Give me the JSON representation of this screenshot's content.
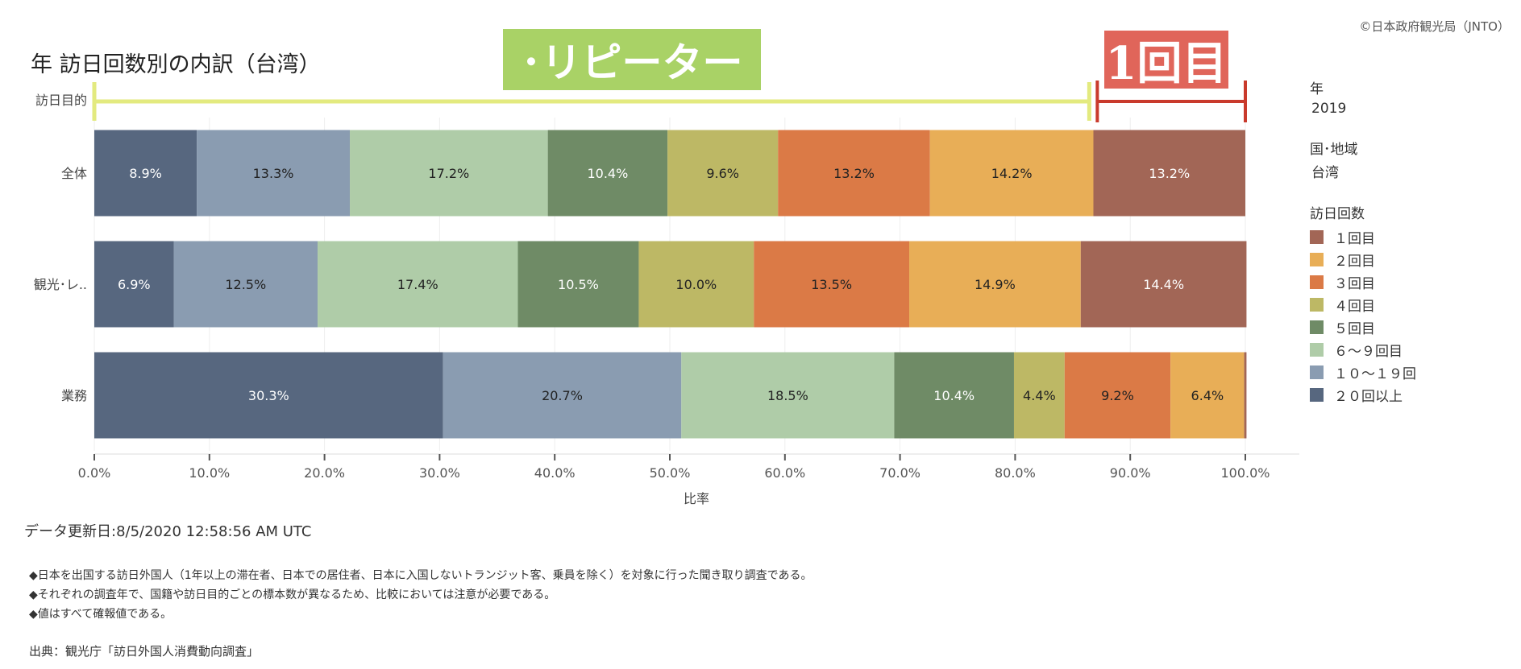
{
  "copyright": "©日本政府観光局（JNTO）",
  "title": "年 訪日回数別の内訳（台湾）",
  "banners": {
    "repeater": "･リピーター",
    "first": "1回目"
  },
  "chart_data": {
    "type": "bar",
    "orientation": "horizontal-stacked-100",
    "row_header": "訪日目的",
    "categories": [
      "全体",
      "観光･レ..",
      "業務"
    ],
    "series": [
      {
        "name": "２０回以上",
        "color": "#57677f",
        "values": [
          8.9,
          6.9,
          30.3
        ]
      },
      {
        "name": "１０～１９回",
        "color": "#8a9cb1",
        "values": [
          13.3,
          12.5,
          20.7
        ]
      },
      {
        "name": "６～９回目",
        "color": "#afcca8",
        "values": [
          17.2,
          17.4,
          18.5
        ]
      },
      {
        "name": "５回目",
        "color": "#6f8b66",
        "values": [
          10.4,
          10.5,
          10.4
        ]
      },
      {
        "name": "４回目",
        "color": "#bdb865",
        "values": [
          9.6,
          10.0,
          4.4
        ]
      },
      {
        "name": "３回目",
        "color": "#db7a46",
        "values": [
          13.2,
          13.5,
          9.2
        ]
      },
      {
        "name": "２回目",
        "color": "#e8ae57",
        "values": [
          14.2,
          14.9,
          6.4
        ]
      },
      {
        "name": "１回目",
        "color": "#a26656",
        "values": [
          13.2,
          14.4,
          0.2
        ]
      }
    ],
    "label_text_colors": [
      "#ffffff",
      "#222222",
      "#222222",
      "#ffffff",
      "#222222",
      "#222222",
      "#222222",
      "#ffffff"
    ],
    "data_labels": [
      [
        "8.9%",
        "13.3%",
        "17.2%",
        "10.4%",
        "9.6%",
        "13.2%",
        "14.2%",
        "13.2%"
      ],
      [
        "6.9%",
        "12.5%",
        "17.4%",
        "10.5%",
        "10.0%",
        "13.5%",
        "14.9%",
        "14.4%"
      ],
      [
        "30.3%",
        "20.7%",
        "18.5%",
        "10.4%",
        "4.4%",
        "9.2%",
        "6.4%",
        ""
      ]
    ],
    "x_ticks": [
      "0.0%",
      "10.0%",
      "20.0%",
      "30.0%",
      "40.0%",
      "50.0%",
      "60.0%",
      "70.0%",
      "80.0%",
      "90.0%",
      "100.0%"
    ],
    "xlabel": "比率",
    "xlim": [
      0,
      100
    ],
    "bracket_split": 87.0
  },
  "filters": {
    "year_label": "年",
    "year_value": "2019",
    "country_label": "国･地域",
    "country_value": "台湾",
    "legend_title": "訪日回数",
    "legend_items": [
      {
        "label": "１回目",
        "color": "#a26656"
      },
      {
        "label": "２回目",
        "color": "#e8ae57"
      },
      {
        "label": "３回目",
        "color": "#db7a46"
      },
      {
        "label": "４回目",
        "color": "#bdb865"
      },
      {
        "label": "５回目",
        "color": "#6f8b66"
      },
      {
        "label": "６～９回目",
        "color": "#afcca8"
      },
      {
        "label": "１０～１９回",
        "color": "#8a9cb1"
      },
      {
        "label": "２０回以上",
        "color": "#57677f"
      }
    ]
  },
  "updated": "データ更新日:8/5/2020 12:58:56 AM UTC",
  "notes": [
    "◆日本を出国する訪日外国人（1年以上の滞在者、日本での居住者、日本に入国しないトランジット客、乗員を除く）を対象に行った聞き取り調査である。",
    "◆それぞれの調査年で、国籍や訪日目的ごとの標本数が異なるため、比較においては注意が必要である。",
    "◆値はすべて確報値である。"
  ],
  "source": "出典：観光庁「訪日外国人消費動向調査」"
}
